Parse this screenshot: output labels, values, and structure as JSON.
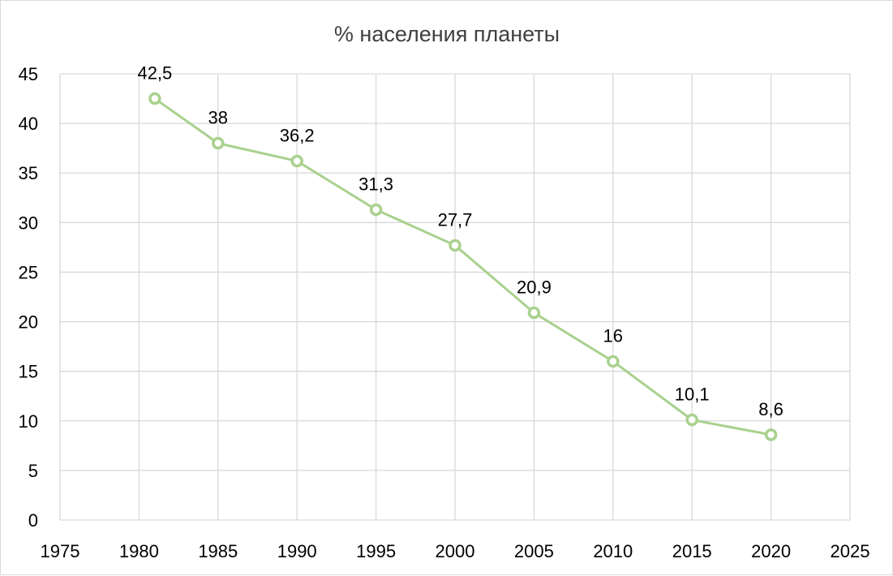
{
  "chart_data": {
    "type": "scatter",
    "title": "% населения планеты",
    "xlabel": "",
    "ylabel": "",
    "xlim": [
      1975,
      2025
    ],
    "ylim": [
      0,
      45
    ],
    "x_ticks": [
      "1975",
      "1980",
      "1985",
      "1990",
      "1995",
      "2000",
      "2005",
      "2010",
      "2015",
      "2020",
      "2025"
    ],
    "y_ticks": [
      "0",
      "5",
      "10",
      "15",
      "20",
      "25",
      "30",
      "35",
      "40",
      "45"
    ],
    "grid": true,
    "series": [
      {
        "x": [
          1981,
          1985,
          1990,
          1995,
          2000,
          2005,
          2010,
          2015,
          2020
        ],
        "y": [
          42.5,
          38,
          36.2,
          31.3,
          27.7,
          20.9,
          16,
          10.1,
          8.6
        ],
        "labels": [
          "42,5",
          "38",
          "36,2",
          "31,3",
          "27,7",
          "20,9",
          "16",
          "10,1",
          "8,6"
        ],
        "color": "#a9d18e",
        "line": true,
        "marker": "hollow-circle"
      }
    ]
  }
}
